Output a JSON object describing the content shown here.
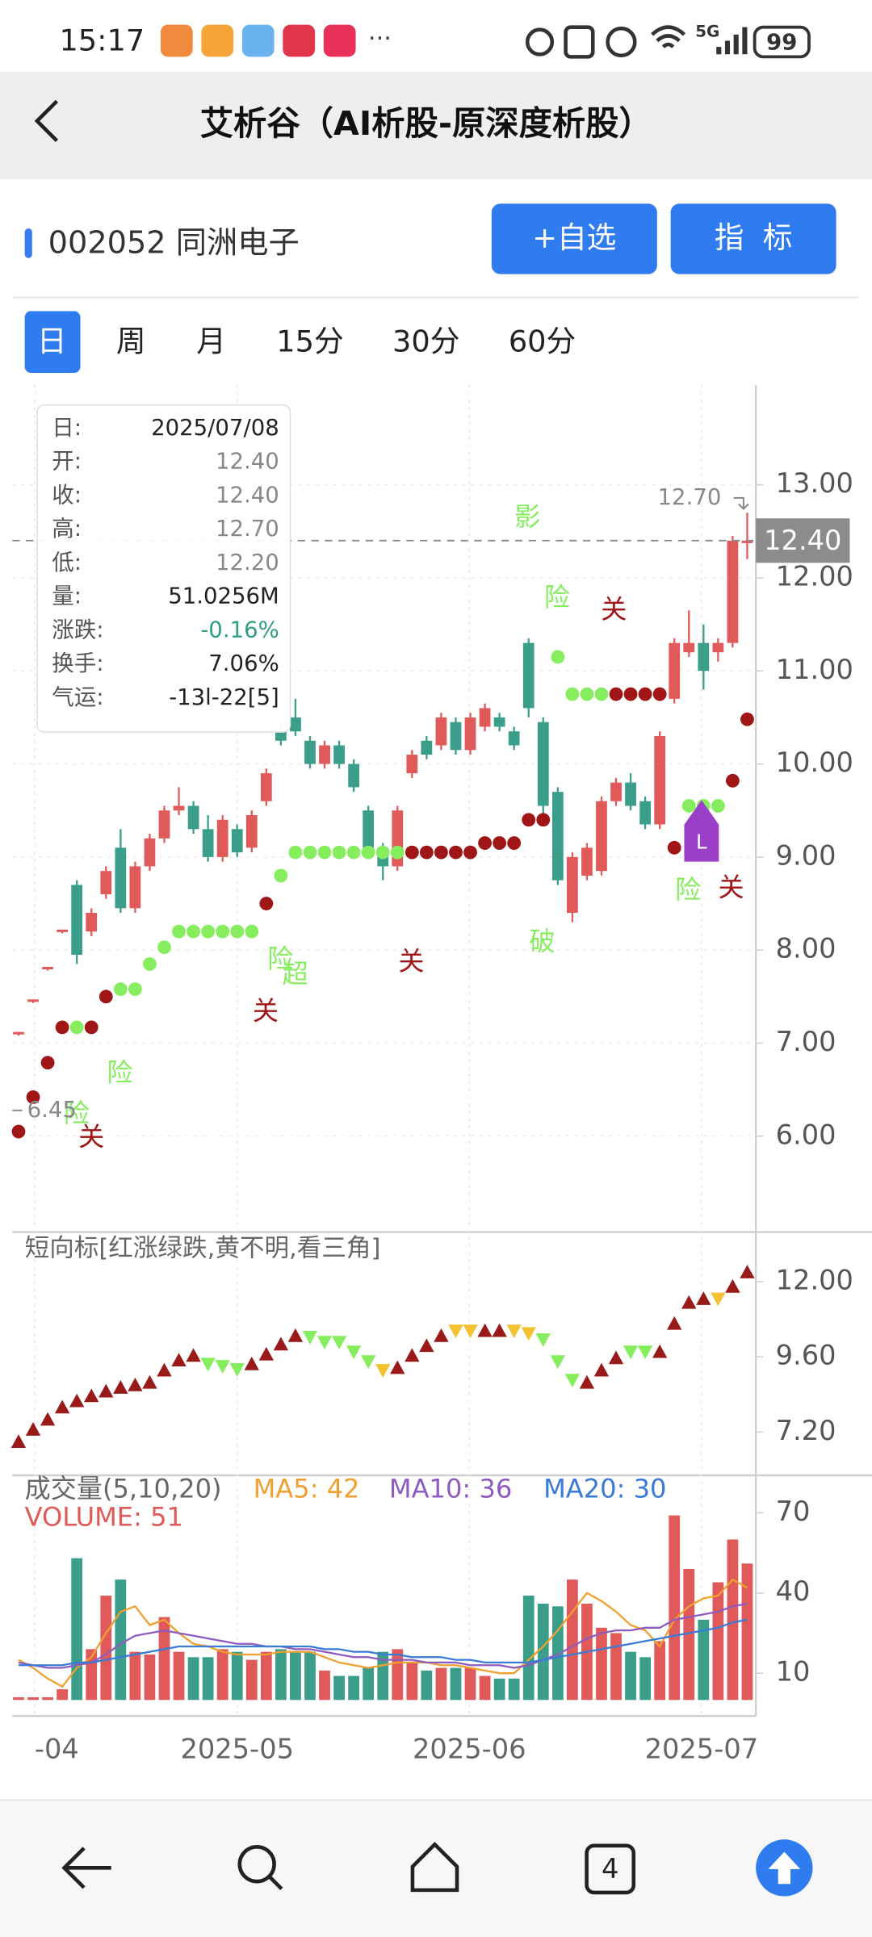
{
  "status_bar": {
    "time": "15:17",
    "network": "5G",
    "battery": "99"
  },
  "header": {
    "title": "艾析谷（AI析股-原深度析股）"
  },
  "stock": {
    "name": "002052 同洲电子",
    "buttons": [
      "+自选",
      "指  标"
    ]
  },
  "tabs": [
    "日",
    "周",
    "月",
    "15分",
    "30分",
    "60分"
  ],
  "info_box": [
    {
      "label": "日:",
      "value": "2025/07/08",
      "color": "#222222"
    },
    {
      "label": "开:",
      "value": "12.40",
      "color": "#888888"
    },
    {
      "label": "收:",
      "value": "12.40",
      "color": "#888888"
    },
    {
      "label": "高:",
      "value": "12.70",
      "color": "#888888"
    },
    {
      "label": "低:",
      "value": "12.20",
      "color": "#888888"
    },
    {
      "label": "量:",
      "value": "51.0256M",
      "color": "#222222"
    },
    {
      "label": "涨跌:",
      "value": "-0.16%",
      "color": "#2e9e82"
    },
    {
      "label": "换手:",
      "value": "7.06%",
      "color": "#222222"
    },
    {
      "label": "气运:",
      "value": "-13l-22[5]",
      "color": "#222222"
    }
  ],
  "chart_data": [
    {
      "type": "candlestick",
      "up_color": "#e05a5a",
      "down_color": "#3a9e8a",
      "open": [
        7.1,
        7.45,
        7.8,
        8.2,
        8.7,
        8.2,
        8.6,
        9.1,
        8.45,
        8.9,
        9.2,
        9.5,
        9.55,
        9.3,
        9.0,
        9.3,
        9.1,
        9.6,
        10.35,
        10.5,
        10.25,
        10.0,
        10.2,
        10.0,
        9.5,
        9.1,
        8.9,
        9.9,
        10.25,
        10.2,
        10.45,
        10.15,
        10.4,
        10.5,
        10.35,
        11.3,
        10.45,
        9.7,
        8.4,
        8.8,
        8.85,
        9.6,
        9.8,
        9.6,
        9.35,
        10.7,
        11.2,
        11.3,
        11.2,
        11.3,
        12.4
      ],
      "high": [
        7.12,
        7.47,
        7.82,
        8.22,
        8.75,
        8.45,
        8.9,
        9.3,
        8.95,
        9.25,
        9.55,
        9.75,
        9.6,
        9.45,
        9.45,
        9.35,
        9.5,
        9.95,
        10.45,
        10.7,
        10.3,
        10.25,
        10.25,
        10.05,
        9.55,
        9.15,
        9.55,
        10.15,
        10.3,
        10.55,
        10.5,
        10.55,
        10.65,
        10.55,
        10.4,
        11.35,
        10.5,
        9.75,
        9.05,
        9.15,
        9.65,
        9.85,
        9.9,
        9.65,
        10.35,
        11.35,
        11.65,
        11.5,
        11.35,
        12.45,
        12.7
      ],
      "low": [
        7.08,
        7.43,
        7.78,
        8.18,
        7.85,
        8.15,
        8.55,
        8.4,
        8.4,
        8.85,
        9.15,
        9.45,
        9.25,
        8.95,
        8.95,
        9.0,
        9.05,
        9.55,
        10.2,
        10.3,
        9.95,
        9.95,
        9.95,
        9.7,
        9.05,
        8.75,
        8.85,
        9.85,
        10.05,
        10.15,
        10.1,
        10.1,
        10.35,
        10.35,
        10.15,
        10.5,
        9.45,
        8.7,
        8.3,
        8.75,
        8.8,
        9.55,
        9.5,
        9.3,
        9.3,
        10.65,
        11.15,
        10.8,
        11.1,
        11.25,
        12.2
      ],
      "close": [
        7.12,
        7.47,
        7.82,
        8.22,
        7.95,
        8.4,
        8.85,
        8.45,
        8.9,
        9.2,
        9.5,
        9.55,
        9.3,
        9.0,
        9.4,
        9.05,
        9.45,
        9.9,
        10.25,
        10.35,
        10.0,
        10.2,
        10.0,
        9.75,
        9.1,
        8.9,
        9.5,
        10.1,
        10.1,
        10.5,
        10.15,
        10.5,
        10.6,
        10.4,
        10.2,
        10.6,
        9.55,
        8.75,
        9.0,
        9.1,
        9.6,
        9.8,
        9.55,
        9.35,
        10.3,
        11.3,
        11.3,
        11.0,
        11.3,
        12.4,
        12.4
      ],
      "red_dots": {
        "color": "#a01515",
        "values": [
          6.05,
          6.42,
          6.79,
          7.17,
          null,
          7.17,
          7.5,
          null,
          null,
          null,
          null,
          null,
          null,
          null,
          null,
          null,
          null,
          8.5,
          null,
          null,
          null,
          null,
          null,
          null,
          null,
          null,
          null,
          9.05,
          9.05,
          9.05,
          9.05,
          9.05,
          9.15,
          9.15,
          9.15,
          9.4,
          9.4,
          null,
          null,
          null,
          null,
          10.75,
          10.75,
          10.75,
          10.75,
          9.1,
          null,
          null,
          null,
          9.82,
          10.48
        ]
      },
      "green_dots": {
        "color": "#86ee5e",
        "values": [
          null,
          null,
          null,
          null,
          7.17,
          null,
          null,
          7.58,
          7.58,
          7.85,
          8.03,
          8.2,
          8.2,
          8.2,
          8.2,
          8.2,
          8.2,
          null,
          8.8,
          9.05,
          9.05,
          9.05,
          9.05,
          9.05,
          9.05,
          9.05,
          9.05,
          null,
          null,
          null,
          null,
          null,
          null,
          null,
          null,
          null,
          null,
          11.15,
          10.75,
          10.75,
          10.75,
          null,
          null,
          null,
          null,
          null,
          9.55,
          9.55,
          9.55,
          null,
          null
        ]
      },
      "signals": [
        {
          "label": "险",
          "color": "#86ee5e"
        },
        {
          "label": "关",
          "color": "#a01515"
        },
        {
          "label": "险",
          "color": "#86ee5e"
        },
        {
          "label": "关",
          "color": "#a01515"
        },
        {
          "label": "险",
          "color": "#86ee5e"
        },
        {
          "label": "超",
          "color": "#86ee5e"
        },
        {
          "label": "关",
          "color": "#a01515"
        },
        {
          "label": "影",
          "color": "#86ee5e"
        },
        {
          "label": "破",
          "color": "#86ee5e"
        },
        {
          "label": "险",
          "color": "#86ee5e"
        },
        {
          "label": "关",
          "color": "#a01515"
        },
        {
          "label": "险",
          "color": "#86ee5e"
        },
        {
          "label": "关",
          "color": "#a01515"
        }
      ],
      "marker": "L",
      "last_price": {
        "value": 12.4,
        "label": "12.40"
      },
      "high_mark": {
        "value": 12.7,
        "label": "12.70"
      },
      "low_mark": {
        "value": 6.45,
        "label": "6.45"
      },
      "ylim": [
        4.97,
        14.07
      ],
      "yticks": [
        {
          "value": 6,
          "label": "6.00"
        },
        {
          "value": 7,
          "label": "7.00"
        },
        {
          "value": 8,
          "label": "8.00"
        },
        {
          "value": 9,
          "label": "9.00"
        },
        {
          "value": 10,
          "label": "10.00"
        },
        {
          "value": 11,
          "label": "11.00"
        },
        {
          "value": 12,
          "label": "12.00"
        },
        {
          "value": 13,
          "label": "13.00"
        }
      ],
      "xtick_labels": [
        "-04",
        "2025-05",
        "2025-06",
        "2025-07"
      ]
    },
    {
      "type": "triangles",
      "title": "短向标[红涨绿跌,黄不明,看三角]",
      "up_color": "#9a1a1a",
      "values": [
        6.89,
        7.28,
        7.6,
        7.99,
        8.19,
        8.35,
        8.5,
        8.62,
        8.7,
        8.78,
        9.17,
        9.49,
        9.64,
        9.37,
        9.3,
        9.2,
        9.37,
        9.68,
        10.0,
        10.27,
        10.23,
        10.07,
        10.07,
        9.76,
        9.45,
        9.17,
        9.25,
        9.64,
        9.95,
        10.27,
        10.43,
        10.43,
        10.43,
        10.43,
        10.43,
        10.35,
        10.15,
        9.45,
        8.86,
        8.78,
        9.17,
        9.56,
        9.76,
        9.76,
        9.76,
        10.66,
        11.33,
        11.45,
        11.45,
        11.84,
        12.3
      ],
      "colors": [
        "#9a1a1a",
        "#9a1a1a",
        "#9a1a1a",
        "#9a1a1a",
        "#9a1a1a",
        "#9a1a1a",
        "#9a1a1a",
        "#9a1a1a",
        "#9a1a1a",
        "#9a1a1a",
        "#9a1a1a",
        "#9a1a1a",
        "#9a1a1a",
        "#86ee5e",
        "#86ee5e",
        "#86ee5e",
        "#9a1a1a",
        "#9a1a1a",
        "#9a1a1a",
        "#9a1a1a",
        "#86ee5e",
        "#86ee5e",
        "#86ee5e",
        "#86ee5e",
        "#86ee5e",
        "#f2c230",
        "#9a1a1a",
        "#9a1a1a",
        "#9a1a1a",
        "#9a1a1a",
        "#f2c230",
        "#f2c230",
        "#9a1a1a",
        "#9a1a1a",
        "#f2c230",
        "#f2c230",
        "#86ee5e",
        "#86ee5e",
        "#86ee5e",
        "#9a1a1a",
        "#9a1a1a",
        "#9a1a1a",
        "#86ee5e",
        "#86ee5e",
        "#9a1a1a",
        "#9a1a1a",
        "#9a1a1a",
        "#9a1a1a",
        "#f2c230",
        "#9a1a1a",
        "#9a1a1a"
      ],
      "ylim": [
        5.82,
        13.5
      ],
      "yticks": [
        {
          "value": 7.2,
          "label": "7.20"
        },
        {
          "value": 9.6,
          "label": "9.60"
        },
        {
          "value": 12,
          "label": "12.00"
        }
      ]
    },
    {
      "type": "volume",
      "title": "成交量(5,10,20)",
      "volume_label": "VOLUME: 51",
      "volume_color": "#e05a5a",
      "values": [
        1,
        1,
        1,
        4,
        53,
        19,
        39,
        45,
        18,
        17,
        31,
        18,
        16,
        16,
        19,
        18,
        15,
        18,
        19,
        18,
        18,
        11,
        9,
        9,
        12,
        18,
        19,
        14,
        11,
        12,
        12,
        12,
        9,
        8,
        8,
        39,
        36,
        35,
        45,
        36,
        27,
        25,
        18,
        16,
        22,
        69,
        49,
        30,
        44,
        60,
        51
      ],
      "series": [
        {
          "label": "MA5: 42",
          "color": "#f0a030",
          "values": [
            15,
            12,
            8,
            5,
            12,
            16,
            25,
            33,
            35,
            28,
            30,
            25,
            21,
            20,
            18,
            17,
            17,
            17,
            18,
            18,
            18,
            16,
            14,
            13,
            12,
            13,
            14,
            14,
            14,
            13,
            13,
            12,
            11,
            10,
            10,
            15,
            20,
            26,
            33,
            40,
            37,
            33,
            28,
            26,
            20,
            30,
            35,
            38,
            39,
            45,
            42
          ]
        },
        {
          "label": "MA10: 36",
          "color": "#8e5cc0",
          "values": [
            14,
            13,
            12,
            12,
            13,
            14,
            17,
            21,
            24,
            25,
            26,
            25,
            24,
            23,
            22,
            21,
            21,
            20,
            20,
            19,
            19,
            18,
            17,
            16,
            16,
            15,
            15,
            15,
            14,
            14,
            14,
            13,
            13,
            13,
            12,
            13,
            15,
            17,
            20,
            23,
            25,
            26,
            26,
            27,
            27,
            30,
            31,
            32,
            33,
            35,
            36
          ]
        },
        {
          "label": "MA20: 30",
          "color": "#3a7ad8",
          "values": [
            13,
            13,
            13,
            13,
            14,
            14,
            15,
            16,
            17,
            18,
            19,
            20,
            20,
            20,
            20,
            20,
            20,
            20,
            20,
            20,
            20,
            19,
            19,
            18,
            18,
            17,
            17,
            16,
            16,
            16,
            15,
            15,
            14,
            14,
            14,
            14,
            15,
            16,
            17,
            18,
            19,
            20,
            21,
            22,
            23,
            24,
            25,
            26,
            27,
            29,
            30
          ]
        }
      ],
      "ylim": [
        -6,
        84
      ],
      "yticks": [
        10,
        40,
        70
      ]
    }
  ],
  "nav": {
    "tab_count": "4"
  }
}
